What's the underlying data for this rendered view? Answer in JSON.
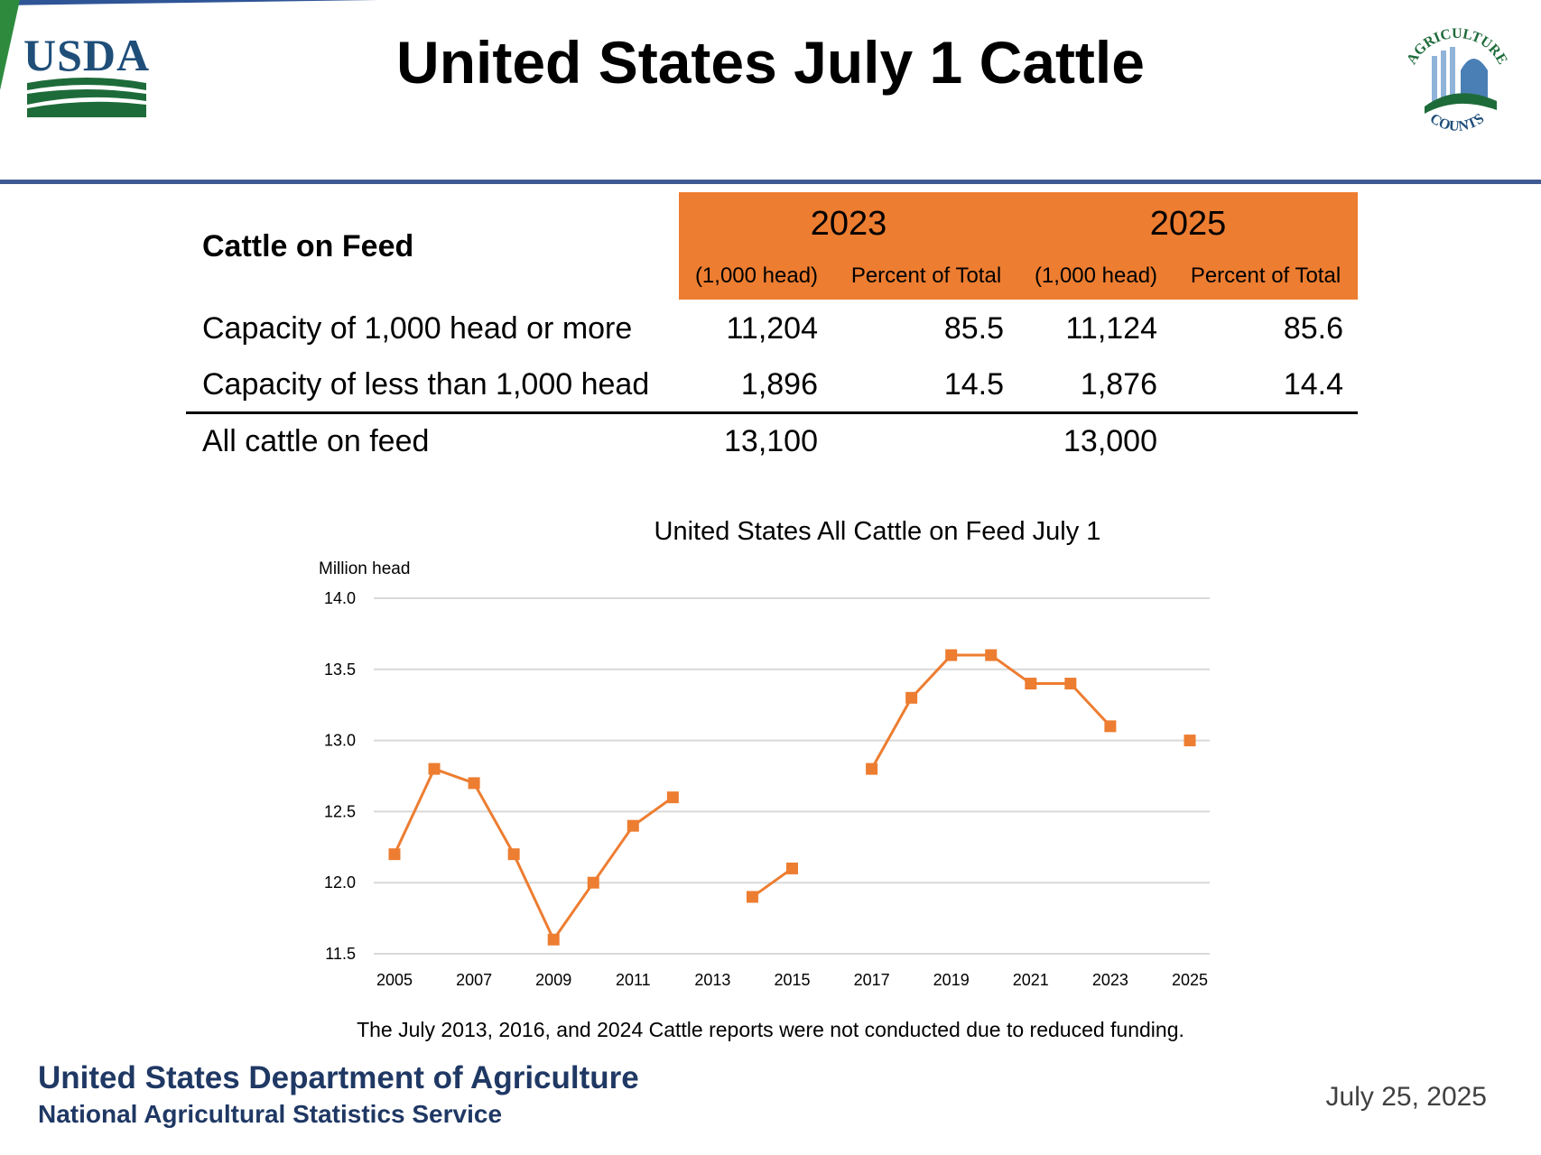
{
  "header": {
    "title": "United States July 1 Cattle",
    "usda_logo_text": "USDA",
    "ag_logo_text_top": "AGRICULTURE",
    "ag_logo_text_bottom": "COUNTS"
  },
  "colors": {
    "accent_orange": "#ed7d31",
    "usda_blue": "#1f4e79",
    "usda_green": "#1e6b3a",
    "rule_blue": "#3f5b93",
    "footer_navy": "#1f3864",
    "grid": "#d9d9d9"
  },
  "table": {
    "title": "Cattle on Feed",
    "years": [
      "2023",
      "2025"
    ],
    "subheaders": [
      "(1,000 head)",
      "Percent of Total",
      "(1,000 head)",
      "Percent of Total"
    ],
    "rows": [
      {
        "label": "Capacity of 1,000 head or more",
        "values": [
          "11,204",
          "85.5",
          "11,124",
          "85.6"
        ]
      },
      {
        "label": "Capacity of less than 1,000 head",
        "values": [
          "1,896",
          "14.5",
          "1,876",
          "14.4"
        ]
      }
    ],
    "total": {
      "label": "All cattle on feed",
      "values": [
        "13,100",
        "",
        "13,000",
        ""
      ]
    }
  },
  "chart_data": {
    "type": "line",
    "title": "United States All Cattle on Feed July 1",
    "ylabel": "Million head",
    "xlabel": "",
    "ylim": [
      11.5,
      14.0
    ],
    "xlim": [
      2005,
      2025
    ],
    "yticks": [
      "14.0",
      "13.5",
      "13.0",
      "12.5",
      "12.0",
      "11.5"
    ],
    "xticks": [
      "2005",
      "2007",
      "2009",
      "2011",
      "2013",
      "2015",
      "2017",
      "2019",
      "2021",
      "2023",
      "2025"
    ],
    "grid": true,
    "marker": "square",
    "line_color": "#ed7d31",
    "series": [
      {
        "x": [
          2005,
          2006,
          2007,
          2008,
          2009,
          2010,
          2011,
          2012,
          2013,
          2014,
          2015,
          2016,
          2017,
          2018,
          2019,
          2020,
          2021,
          2022,
          2023,
          2024,
          2025
        ],
        "y": [
          12.2,
          12.8,
          12.7,
          12.2,
          11.6,
          12.0,
          12.4,
          12.6,
          null,
          11.9,
          12.1,
          null,
          12.8,
          13.3,
          13.6,
          13.6,
          13.4,
          13.4,
          13.1,
          null,
          13.0
        ]
      }
    ]
  },
  "note": "The July 2013, 2016, and 2024 Cattle reports were not conducted due to reduced funding.",
  "footer": {
    "dept": "United States Department of Agriculture",
    "service": "National Agricultural Statistics Service",
    "date": "July 25, 2025"
  }
}
